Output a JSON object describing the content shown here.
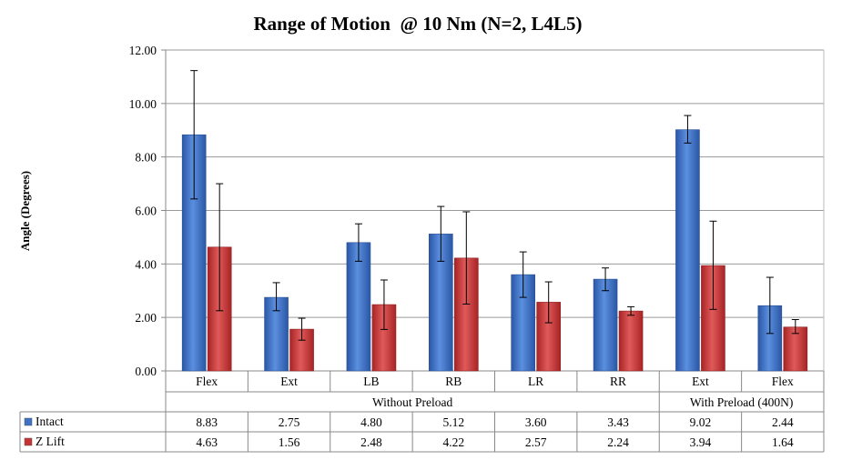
{
  "chart_data": {
    "type": "bar",
    "title": "Range of Motion  @ 10 Nm (N=2, L4L5)",
    "xlabel": "",
    "ylabel": "Angle (Degrees)",
    "ylim": [
      0,
      12
    ],
    "yticks": [
      "0.00",
      "2.00",
      "4.00",
      "6.00",
      "8.00",
      "10.00",
      "12.00"
    ],
    "grid": true,
    "legend": "data-table-left",
    "categories": [
      "Flex",
      "Ext",
      "LB",
      "RB",
      "LR",
      "RR",
      "Ext",
      "Flex"
    ],
    "groups": [
      {
        "label": "Without Preload",
        "span": 6
      },
      {
        "label": "With Preload (400N)",
        "span": 2
      }
    ],
    "series": [
      {
        "name": "Intact",
        "color": "#3d72c6",
        "values": [
          8.83,
          2.75,
          4.8,
          5.12,
          3.6,
          3.43,
          9.02,
          2.44
        ],
        "labels": [
          "8.83",
          "2.75",
          "4.80",
          "5.12",
          "3.60",
          "3.43",
          "9.02",
          "2.44"
        ],
        "err_low": [
          6.43,
          2.25,
          4.1,
          4.1,
          2.75,
          3.0,
          8.52,
          1.4
        ],
        "err_high": [
          11.23,
          3.3,
          5.5,
          6.15,
          4.45,
          3.85,
          9.55,
          3.5
        ]
      },
      {
        "name": "Z Lift",
        "color": "#c83232",
        "values": [
          4.63,
          1.56,
          2.48,
          4.22,
          2.57,
          2.24,
          3.94,
          1.64
        ],
        "labels": [
          "4.63",
          "1.56",
          "2.48",
          "4.22",
          "2.57",
          "2.24",
          "3.94",
          "1.64"
        ],
        "err_low": [
          2.25,
          1.15,
          1.55,
          2.5,
          1.8,
          2.08,
          2.3,
          1.4
        ],
        "err_high": [
          7.0,
          1.97,
          3.4,
          5.95,
          3.33,
          2.4,
          5.6,
          1.92
        ]
      }
    ]
  }
}
